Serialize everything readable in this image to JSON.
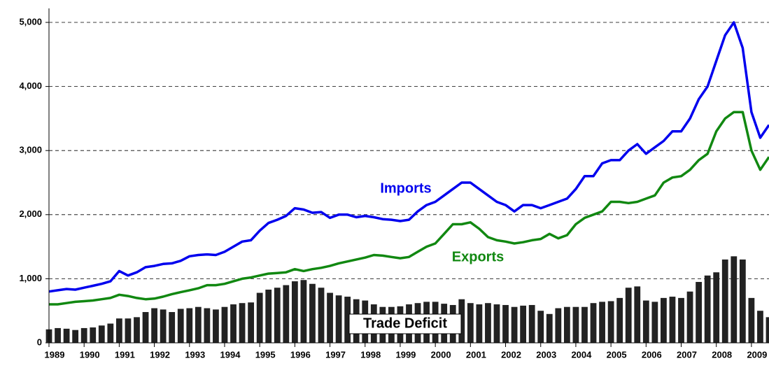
{
  "chart_data": {
    "type": "line",
    "x": [
      1989,
      1989.25,
      1989.5,
      1989.75,
      1990,
      1990.25,
      1990.5,
      1990.75,
      1991,
      1991.25,
      1991.5,
      1991.75,
      1992,
      1992.25,
      1992.5,
      1992.75,
      1993,
      1993.25,
      1993.5,
      1993.75,
      1994,
      1994.25,
      1994.5,
      1994.75,
      1995,
      1995.25,
      1995.5,
      1995.75,
      1996,
      1996.25,
      1996.5,
      1996.75,
      1997,
      1997.25,
      1997.5,
      1997.75,
      1998,
      1998.25,
      1998.5,
      1998.75,
      1999,
      1999.25,
      1999.5,
      1999.75,
      2000,
      2000.25,
      2000.5,
      2000.75,
      2001,
      2001.25,
      2001.5,
      2001.75,
      2002,
      2002.25,
      2002.5,
      2002.75,
      2003,
      2003.25,
      2003.5,
      2003.75,
      2004,
      2004.25,
      2004.5,
      2004.75,
      2005,
      2005.25,
      2005.5,
      2005.75,
      2006,
      2006.25,
      2006.5,
      2006.75,
      2007,
      2007.25,
      2007.5,
      2007.75,
      2008,
      2008.25,
      2008.5,
      2008.75,
      2009,
      2009.25,
      2009.5
    ],
    "series": [
      {
        "name": "Trade Deficit",
        "type": "bar",
        "color": "#222222",
        "values": [
          210,
          230,
          220,
          200,
          230,
          240,
          270,
          300,
          380,
          380,
          400,
          480,
          540,
          520,
          480,
          530,
          540,
          560,
          540,
          520,
          560,
          600,
          620,
          630,
          780,
          830,
          860,
          900,
          960,
          980,
          920,
          860,
          780,
          740,
          720,
          680,
          660,
          600,
          560,
          560,
          570,
          600,
          620,
          640,
          640,
          610,
          590,
          680,
          620,
          600,
          620,
          600,
          590,
          560,
          580,
          590,
          500,
          450,
          540,
          560,
          560,
          560,
          620,
          640,
          650,
          700,
          860,
          880,
          660,
          640,
          700,
          720,
          700,
          800,
          950,
          1050,
          1100,
          1300,
          1350,
          1300,
          700,
          500,
          400
        ]
      },
      {
        "name": "Imports",
        "color": "#0000ee",
        "values": [
          800,
          820,
          840,
          830,
          860,
          890,
          920,
          960,
          1120,
          1050,
          1100,
          1180,
          1200,
          1230,
          1240,
          1280,
          1350,
          1370,
          1380,
          1370,
          1420,
          1500,
          1580,
          1600,
          1750,
          1870,
          1920,
          1980,
          2100,
          2080,
          2030,
          2040,
          1950,
          2000,
          2000,
          1960,
          1980,
          1960,
          1930,
          1920,
          1900,
          1920,
          2050,
          2150,
          2200,
          2300,
          2400,
          2500,
          2500,
          2400,
          2300,
          2200,
          2150,
          2050,
          2150,
          2150,
          2100,
          2150,
          2200,
          2250,
          2400,
          2600,
          2600,
          2800,
          2850,
          2850,
          3000,
          3100,
          2950,
          3050,
          3150,
          3300,
          3300,
          3500,
          3800,
          4000,
          4400,
          4800,
          5000,
          4600,
          3600,
          3200,
          3400
        ]
      },
      {
        "name": "Exports",
        "color": "#118811",
        "values": [
          600,
          600,
          620,
          640,
          650,
          660,
          680,
          700,
          750,
          730,
          700,
          680,
          690,
          720,
          760,
          790,
          820,
          850,
          900,
          900,
          920,
          960,
          1000,
          1020,
          1050,
          1080,
          1090,
          1100,
          1150,
          1120,
          1150,
          1170,
          1200,
          1240,
          1270,
          1300,
          1330,
          1370,
          1360,
          1340,
          1320,
          1340,
          1420,
          1500,
          1550,
          1700,
          1850,
          1850,
          1880,
          1780,
          1650,
          1600,
          1580,
          1550,
          1570,
          1600,
          1620,
          1700,
          1630,
          1680,
          1850,
          1950,
          2000,
          2050,
          2200,
          2200,
          2180,
          2200,
          2250,
          2300,
          2500,
          2580,
          2600,
          2700,
          2850,
          2950,
          3300,
          3500,
          3600,
          3600,
          3000,
          2700,
          2900
        ]
      }
    ],
    "xlim": [
      1989,
      2009.5
    ],
    "xticks": [
      1989,
      1990,
      1991,
      1992,
      1993,
      1994,
      1995,
      1996,
      1997,
      1998,
      1999,
      2000,
      2001,
      2002,
      2003,
      2004,
      2005,
      2006,
      2007,
      2008,
      2009
    ],
    "ylim": [
      0,
      5000
    ],
    "yticks": [
      0,
      {
        "value": 1000,
        "label": "1,000"
      },
      {
        "value": 2000,
        "label": "2,000"
      },
      {
        "value": 3000,
        "label": "3,000"
      },
      {
        "value": 4000,
        "label": "4,000"
      },
      {
        "value": 5000,
        "label": "5,000"
      }
    ],
    "grid": true
  }
}
